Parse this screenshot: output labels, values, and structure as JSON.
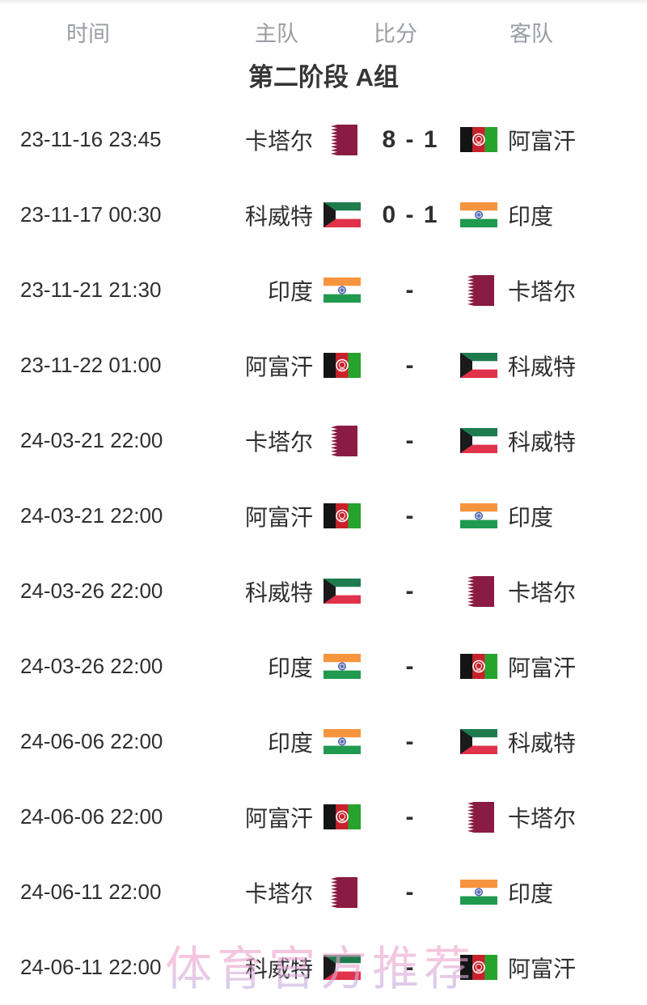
{
  "header": {
    "columns": [
      "时间",
      "主队",
      "比分",
      "客队"
    ]
  },
  "group_title": "第二阶段 A组",
  "watermark": "体育官方推荐",
  "colors": {
    "text_dark": "#2e2f31",
    "header_gray": "#9a9da3",
    "title_dark": "#363636",
    "watermark_pink": "#f09fc8",
    "watermark_lavender": "#b5b2e8"
  },
  "flags": {
    "qatar": {
      "maroon": "#8a1b42",
      "white": "#ffffff"
    },
    "kuwait": {
      "green": "#1e7b4d",
      "white": "#ffffff",
      "red": "#e0324b",
      "black": "#1a1a1a"
    },
    "india": {
      "saffron": "#f7943e",
      "white": "#ffffff",
      "green": "#1f9a4e",
      "navy": "#3a57a8"
    },
    "afghanistan": {
      "black": "#141414",
      "red": "#c8212b",
      "green": "#25a32c",
      "white": "#ffffff"
    }
  },
  "matches": [
    {
      "time": "23-11-16 23:45",
      "home": "卡塔尔",
      "home_flag": "qatar",
      "score": "8 - 1",
      "away": "阿富汗",
      "away_flag": "afghanistan"
    },
    {
      "time": "23-11-17 00:30",
      "home": "科威特",
      "home_flag": "kuwait",
      "score": "0 - 1",
      "away": "印度",
      "away_flag": "india"
    },
    {
      "time": "23-11-21 21:30",
      "home": "印度",
      "home_flag": "india",
      "score": "-",
      "away": "卡塔尔",
      "away_flag": "qatar"
    },
    {
      "time": "23-11-22 01:00",
      "home": "阿富汗",
      "home_flag": "afghanistan",
      "score": "-",
      "away": "科威特",
      "away_flag": "kuwait"
    },
    {
      "time": "24-03-21 22:00",
      "home": "卡塔尔",
      "home_flag": "qatar",
      "score": "-",
      "away": "科威特",
      "away_flag": "kuwait"
    },
    {
      "time": "24-03-21 22:00",
      "home": "阿富汗",
      "home_flag": "afghanistan",
      "score": "-",
      "away": "印度",
      "away_flag": "india"
    },
    {
      "time": "24-03-26 22:00",
      "home": "科威特",
      "home_flag": "kuwait",
      "score": "-",
      "away": "卡塔尔",
      "away_flag": "qatar"
    },
    {
      "time": "24-03-26 22:00",
      "home": "印度",
      "home_flag": "india",
      "score": "-",
      "away": "阿富汗",
      "away_flag": "afghanistan"
    },
    {
      "time": "24-06-06 22:00",
      "home": "印度",
      "home_flag": "india",
      "score": "-",
      "away": "科威特",
      "away_flag": "kuwait"
    },
    {
      "time": "24-06-06 22:00",
      "home": "阿富汗",
      "home_flag": "afghanistan",
      "score": "-",
      "away": "卡塔尔",
      "away_flag": "qatar"
    },
    {
      "time": "24-06-11 22:00",
      "home": "卡塔尔",
      "home_flag": "qatar",
      "score": "-",
      "away": "印度",
      "away_flag": "india"
    },
    {
      "time": "24-06-11 22:00",
      "home": "科威特",
      "home_flag": "kuwait",
      "score": "-",
      "away": "阿富汗",
      "away_flag": "afghanistan"
    }
  ]
}
